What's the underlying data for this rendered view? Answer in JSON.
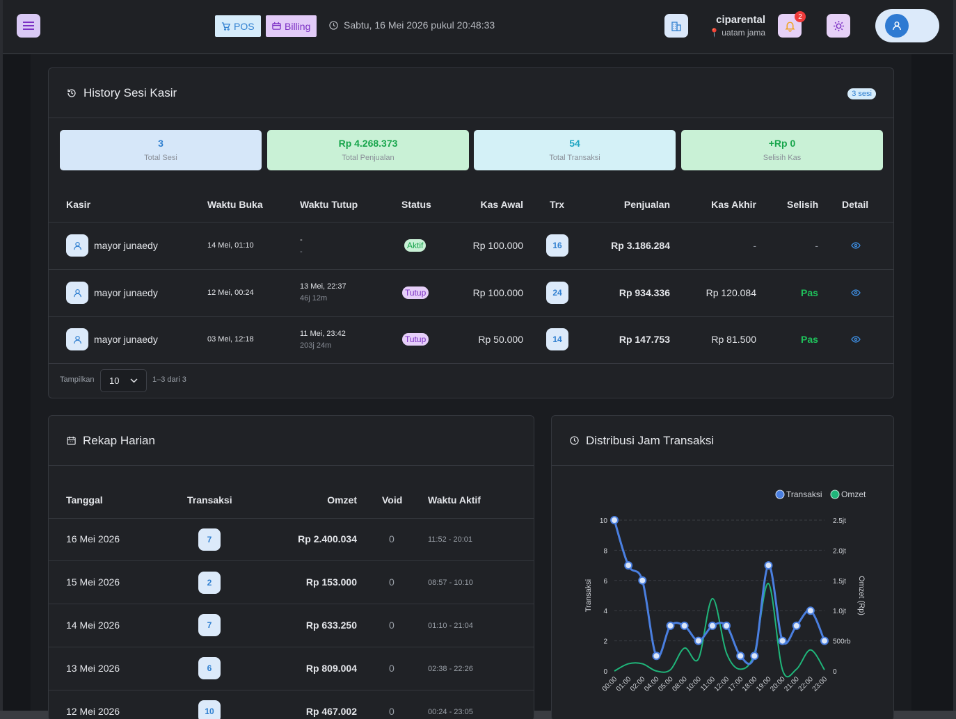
{
  "header": {
    "pos_label": "POS",
    "billing_label": "Billing",
    "datetime": "Sabtu, 16 Mei 2026 pukul 20:48:33",
    "notification_count": "2",
    "user_name": "ciparental",
    "user_location": "uatam jama"
  },
  "history": {
    "title": "History Sesi Kasir",
    "badge": "3 sesi",
    "stats": [
      {
        "value": "3",
        "label": "Total Sesi",
        "bg": "#d6e7f9",
        "color": "#2f7fd0"
      },
      {
        "value": "Rp 4.268.373",
        "label": "Total Penjualan",
        "bg": "#c9f1d6",
        "color": "#17a54b"
      },
      {
        "value": "54",
        "label": "Total Transaksi",
        "bg": "#d4f1f7",
        "color": "#20a6c2"
      },
      {
        "value": "+Rp 0",
        "label": "Selisih Kas",
        "bg": "#c9f1d6",
        "color": "#17a54b"
      }
    ],
    "columns": [
      "Kasir",
      "Waktu Buka",
      "Waktu Tutup",
      "Status",
      "Kas Awal",
      "Trx",
      "Penjualan",
      "Kas Akhir",
      "Selisih",
      "Detail"
    ],
    "rows": [
      {
        "kasir": "mayor junaedy",
        "buka": "14 Mei, 01:10",
        "tutup": "-",
        "durasi": "-",
        "status": "Aktif",
        "kas_awal": "Rp 100.000",
        "trx": "16",
        "penjualan": "Rp 3.186.284",
        "kas_akhir": "-",
        "selisih": "-"
      },
      {
        "kasir": "mayor junaedy",
        "buka": "12 Mei, 00:24",
        "tutup": "13 Mei, 22:37",
        "durasi": "46j 12m",
        "status": "Tutup",
        "kas_awal": "Rp 100.000",
        "trx": "24",
        "penjualan": "Rp 934.336",
        "kas_akhir": "Rp 120.084",
        "selisih": "Pas"
      },
      {
        "kasir": "mayor junaedy",
        "buka": "03 Mei, 12:18",
        "tutup": "11 Mei, 23:42",
        "durasi": "203j 24m",
        "status": "Tutup",
        "kas_awal": "Rp 50.000",
        "trx": "14",
        "penjualan": "Rp 147.753",
        "kas_akhir": "Rp 81.500",
        "selisih": "Pas"
      }
    ],
    "footer": {
      "show_label": "Tampilkan",
      "page_size": "10",
      "range": "1–3 dari 3"
    }
  },
  "rekap": {
    "title": "Rekap Harian",
    "columns": [
      "Tanggal",
      "Transaksi",
      "Omzet",
      "Void",
      "Waktu Aktif"
    ],
    "rows": [
      {
        "tanggal": "16 Mei 2026",
        "transaksi": "7",
        "omzet": "Rp 2.400.034",
        "void": "0",
        "waktu": "11:52 - 20:01"
      },
      {
        "tanggal": "15 Mei 2026",
        "transaksi": "2",
        "omzet": "Rp 153.000",
        "void": "0",
        "waktu": "08:57 - 10:10"
      },
      {
        "tanggal": "14 Mei 2026",
        "transaksi": "7",
        "omzet": "Rp 633.250",
        "void": "0",
        "waktu": "01:10 - 21:04"
      },
      {
        "tanggal": "13 Mei 2026",
        "transaksi": "6",
        "omzet": "Rp 809.004",
        "void": "0",
        "waktu": "02:38 - 22:26"
      },
      {
        "tanggal": "12 Mei 2026",
        "transaksi": "10",
        "omzet": "Rp 467.002",
        "void": "0",
        "waktu": "00:24 - 23:05"
      }
    ]
  },
  "distribusi": {
    "title": "Distribusi Jam Transaksi"
  },
  "chart_data": {
    "type": "line",
    "x": [
      "00:00",
      "01:00",
      "02:00",
      "04:00",
      "05:00",
      "08:00",
      "10:00",
      "11:00",
      "12:00",
      "17:00",
      "18:00",
      "19:00",
      "20:00",
      "21:00",
      "22:00",
      "23:00"
    ],
    "series": [
      {
        "name": "Transaksi",
        "axis": "left",
        "color": "#4a7fe0",
        "values": [
          10,
          7,
          6,
          1,
          3,
          3,
          2,
          3,
          3,
          1,
          1,
          7,
          2,
          3,
          4,
          2
        ]
      },
      {
        "name": "Omzet",
        "axis": "right",
        "color": "#1fb67a",
        "values": [
          0,
          120000,
          120000,
          0,
          20000,
          380000,
          200000,
          1200000,
          300000,
          30000,
          300000,
          1450000,
          20000,
          30000,
          350000,
          20000
        ]
      }
    ],
    "ylabel": "Transaksi",
    "y2label": "Omzet (Rp)",
    "ylim": [
      0,
      10
    ],
    "y2lim": [
      0,
      2500000
    ],
    "yticks": [
      "0",
      "2",
      "4",
      "6",
      "8",
      "10"
    ],
    "y2ticks": [
      "0",
      "500rb",
      "1.0jt",
      "1.5jt",
      "2.0jt",
      "2.5jt"
    ],
    "legend": "top-right",
    "grid": true
  }
}
